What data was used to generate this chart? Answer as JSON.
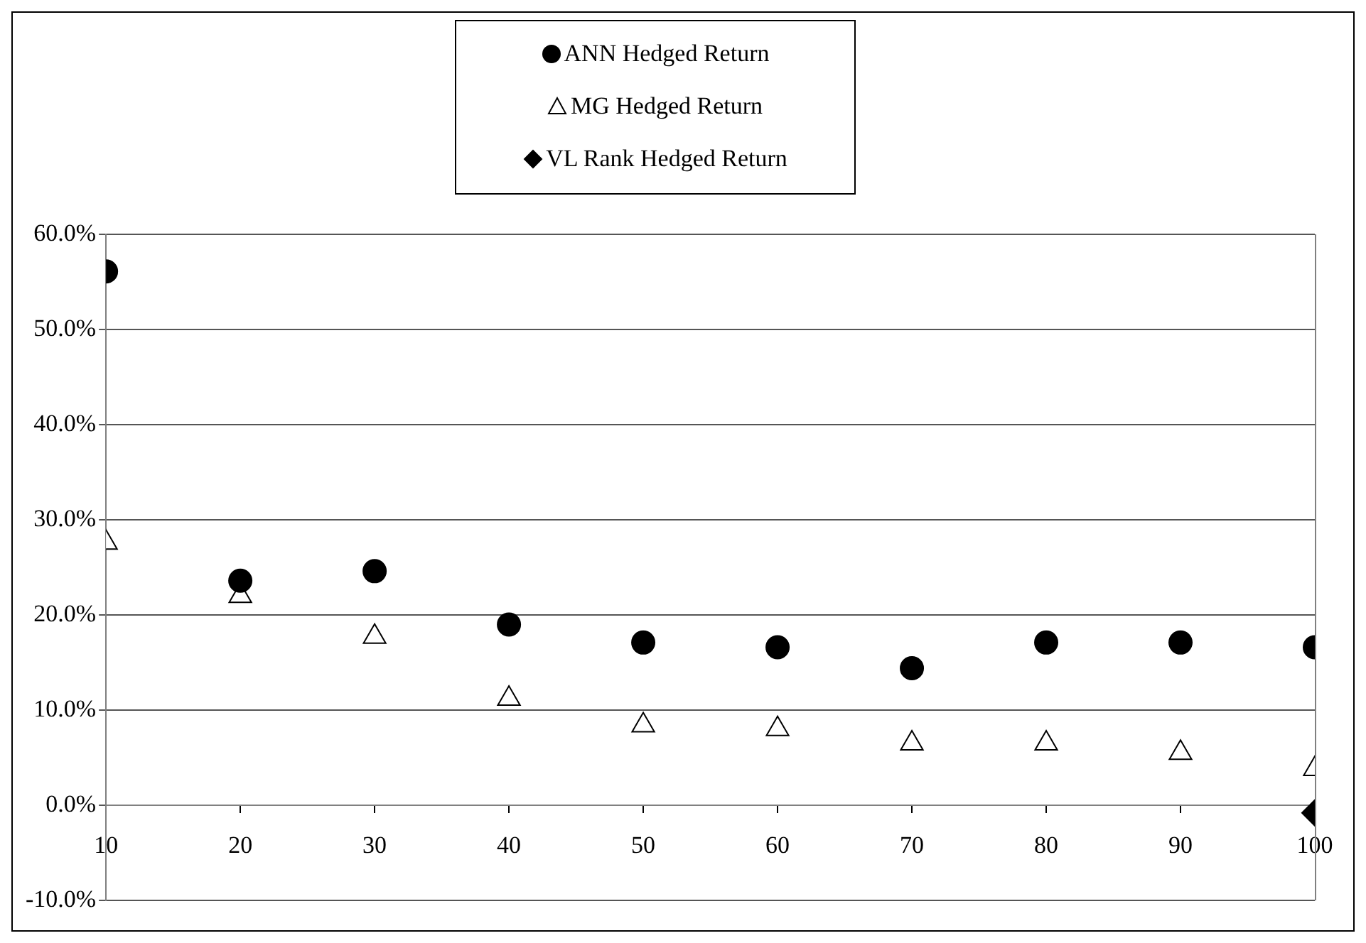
{
  "chart_data": {
    "type": "scatter",
    "x": [
      10,
      20,
      30,
      40,
      50,
      60,
      70,
      80,
      90,
      100
    ],
    "series": [
      {
        "name": "ANN Hedged Return",
        "color": "#000000",
        "marker": "circle",
        "values": [
          56.1,
          23.6,
          24.6,
          19.0,
          17.1,
          16.6,
          14.4,
          17.1,
          17.1,
          16.6
        ]
      },
      {
        "name": "MG Hedged Return",
        "color": "#000000",
        "marker": "triangle",
        "values": [
          27.6,
          22.0,
          17.7,
          11.2,
          8.4,
          8.0,
          6.5,
          6.5,
          5.5,
          3.8
        ]
      },
      {
        "name": "VL Rank Hedged Return",
        "color": "#000000",
        "marker": "diamond",
        "values": [
          null,
          null,
          null,
          null,
          null,
          null,
          null,
          null,
          null,
          -0.8
        ]
      }
    ],
    "xlim": [
      10,
      100
    ],
    "xticks": [
      10,
      20,
      30,
      40,
      50,
      60,
      70,
      80,
      90,
      100
    ],
    "ylim": [
      -10,
      60
    ],
    "yticks": [
      {
        "value": -10,
        "label": "-10.0%"
      },
      {
        "value": 0,
        "label": "0.0%"
      },
      {
        "value": 10,
        "label": "10.0%"
      },
      {
        "value": 20,
        "label": "20.0%"
      },
      {
        "value": 30,
        "label": "30.0%"
      },
      {
        "value": 40,
        "label": "40.0%"
      },
      {
        "value": 50,
        "label": "50.0%"
      },
      {
        "value": 60,
        "label": "60.0%"
      }
    ],
    "grid": "y",
    "legend": "top"
  }
}
